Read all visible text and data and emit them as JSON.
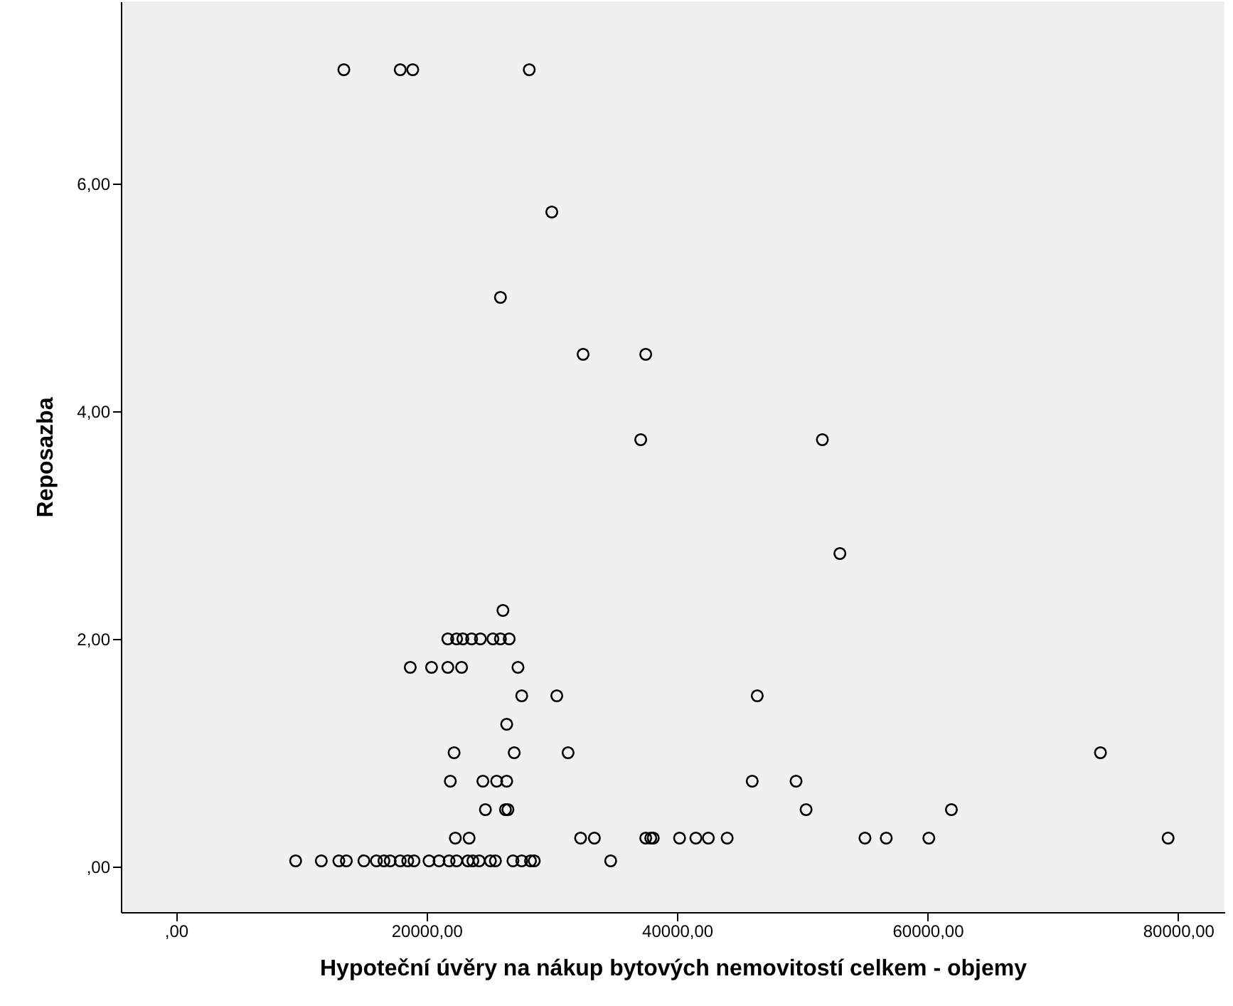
{
  "chart_data": {
    "type": "scatter",
    "xlabel": "Hypoteční úvěry na nákup bytových nemovitostí celkem - objemy",
    "ylabel": "Reposazba",
    "xlim": [
      -4400,
      83700
    ],
    "ylim": [
      -0.4,
      7.6
    ],
    "xticks": [
      {
        "value": 0,
        "label": ",00"
      },
      {
        "value": 20000,
        "label": "20000,00"
      },
      {
        "value": 40000,
        "label": "40000,00"
      },
      {
        "value": 60000,
        "label": "60000,00"
      },
      {
        "value": 80000,
        "label": "80000,00"
      }
    ],
    "yticks": [
      {
        "value": 0,
        "label": ",00"
      },
      {
        "value": 2,
        "label": "2,00"
      },
      {
        "value": 4,
        "label": "4,00"
      },
      {
        "value": 6,
        "label": "6,00"
      }
    ],
    "marker": "circle",
    "grid": false,
    "series": [
      {
        "color": "#000000",
        "x": [
          13400,
          17900,
          18900,
          28200,
          30000,
          25900,
          32500,
          37500,
          37100,
          51600,
          53000,
          26100,
          21700,
          22400,
          22900,
          23600,
          24300,
          25300,
          25900,
          26600,
          18700,
          20400,
          21700,
          22800,
          27300,
          27600,
          30400,
          46400,
          26400,
          22200,
          27000,
          31300,
          73800,
          21900,
          24500,
          25600,
          26400,
          46000,
          49500,
          24700,
          26300,
          26500,
          50300,
          61900,
          22300,
          23400,
          32300,
          33400,
          37500,
          37900,
          38100,
          40200,
          41500,
          42500,
          44000,
          55000,
          56700,
          60100,
          79200,
          9550,
          11600,
          13000,
          13600,
          15000,
          16000,
          16600,
          17100,
          17900,
          18500,
          19000,
          20200,
          21000,
          21800,
          22400,
          23300,
          23700,
          24200,
          25100,
          25500,
          26900,
          27600,
          28300,
          28600,
          34700
        ],
        "values": [
          7,
          7,
          7,
          7,
          5.75,
          5,
          4.5,
          4.5,
          3.75,
          3.75,
          2.75,
          2.25,
          2,
          2,
          2,
          2,
          2,
          2,
          2,
          2,
          1.75,
          1.75,
          1.75,
          1.75,
          1.75,
          1.5,
          1.5,
          1.5,
          1.25,
          1,
          1,
          1,
          1,
          0.75,
          0.75,
          0.75,
          0.75,
          0.75,
          0.75,
          0.5,
          0.5,
          0.5,
          0.5,
          0.5,
          0.25,
          0.25,
          0.25,
          0.25,
          0.25,
          0.25,
          0.25,
          0.25,
          0.25,
          0.25,
          0.25,
          0.25,
          0.25,
          0.25,
          0.25,
          0.05,
          0.05,
          0.05,
          0.05,
          0.05,
          0.05,
          0.05,
          0.05,
          0.05,
          0.05,
          0.05,
          0.05,
          0.05,
          0.05,
          0.05,
          0.05,
          0.05,
          0.05,
          0.05,
          0.05,
          0.05,
          0.05,
          0.05,
          0.05,
          0.05
        ]
      }
    ]
  }
}
